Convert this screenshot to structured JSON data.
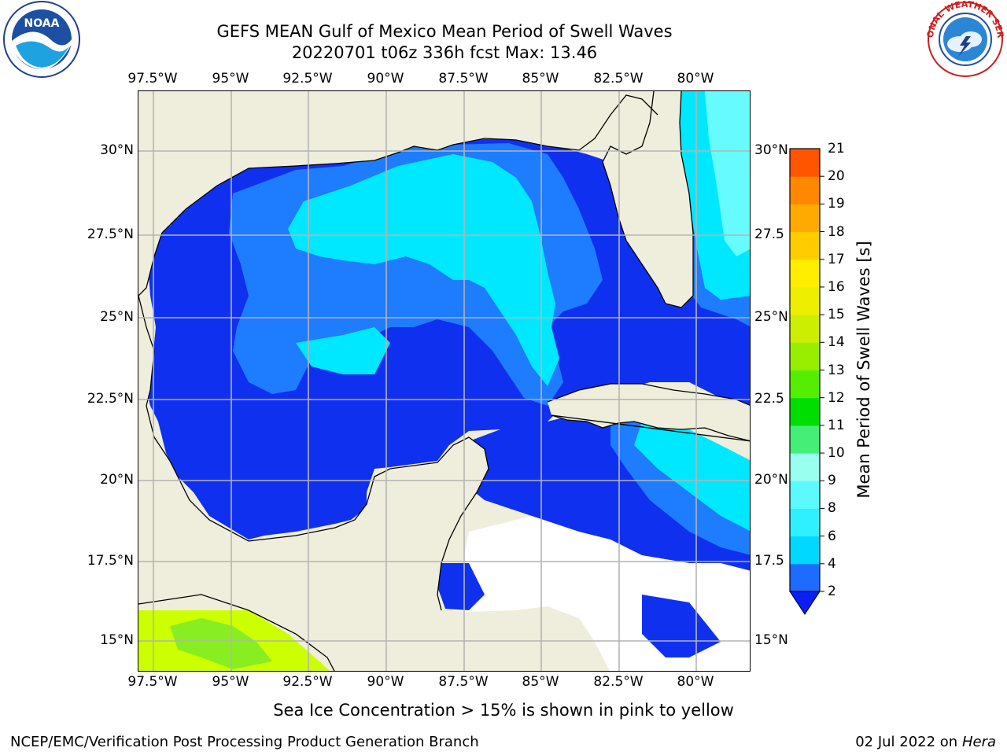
{
  "header": {
    "title_line1": "GEFS MEAN Gulf of Mexico Mean Period of Swell Waves",
    "title_line2": "20220701 t06z 336h fcst   Max: 13.46"
  },
  "axes": {
    "lon_labels": [
      "97.5°W",
      "95°W",
      "92.5°W",
      "90°W",
      "87.5°W",
      "85°W",
      "82.5°W",
      "80°W"
    ],
    "lat_labels_left": [
      "30°N",
      "27.5°N",
      "25°N",
      "22.5°N",
      "20°N",
      "17.5°N",
      "15°N"
    ],
    "lat_labels_right": [
      "30°N",
      "27.5",
      "25°N",
      "22.5",
      "20°N",
      "17.5",
      "15°N"
    ]
  },
  "colorbar": {
    "label": "Mean Period of Swell Waves [s]",
    "ticks": [
      "2",
      "4",
      "6",
      "8",
      "9",
      "10",
      "11",
      "12",
      "13",
      "14",
      "15",
      "16",
      "17",
      "18",
      "19",
      "20",
      "21"
    ],
    "colors": [
      "#1e6cff",
      "#00d8ff",
      "#2ef0ff",
      "#5cfaff",
      "#99ffee",
      "#44ee77",
      "#00dd00",
      "#55ee00",
      "#99ee00",
      "#ccee00",
      "#eeee00",
      "#ffee00",
      "#ffcc00",
      "#ffaa00",
      "#ff8800",
      "#ff5500",
      "#ff2200",
      "#ff0000"
    ],
    "extend_color": "#0a1ef5"
  },
  "map_colors": {
    "land": "#efeedc",
    "no_data": "#ffffff",
    "class_2_4": "#1030f0",
    "class_4_6": "#1e7cff",
    "class_6_8": "#00e8ff",
    "class_8_9": "#66fcff",
    "ice_low": "#88ee22",
    "ice_high": "#ccff00",
    "grid": "#b4b4b4"
  },
  "footer": {
    "ice_note": "Sea Ice Concentration > 15% is shown in pink to yellow",
    "credit": "NCEP/EMC/Verification Post Processing Product Generation Branch",
    "date": "02 Jul 2022 on",
    "host": "Hera"
  },
  "logos": {
    "left_text": "NOAA",
    "right_text": "NATIONAL WEATHER SERVICE"
  }
}
